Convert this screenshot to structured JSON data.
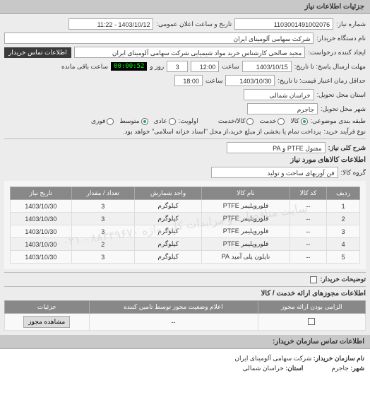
{
  "header": {
    "title": "جزئیات اطلاعات نیاز"
  },
  "fields": {
    "request_no_label": "شماره نیاز:",
    "request_no": "1103001491002076",
    "announce_label": "تاریخ و ساعت اعلان عمومی:",
    "announce_value": "1403/10/12 - 11:22",
    "buyer_label": "نام دستگاه خریدار:",
    "buyer_value": "شرکت سهامی آلومینای ایران",
    "creator_label": "ایجاد کننده درخواست:",
    "creator_value": "مجید صالحی کارشناس خرید مواد شیمیایی شرکت سهامی آلومینای ایران",
    "contact_btn": "اطلاعات تماس خریدار",
    "deadline_send_label": "مهلت ارسال پاسخ: تا تاریخ:",
    "deadline_send_date": "1403/10/15",
    "time_label": "ساعت",
    "deadline_send_time": "12:00",
    "days_remain_num": "3",
    "days_remain_label": "روز و",
    "countdown": "00:00:52",
    "remain_suffix": "ساعت باقی مانده",
    "deadline_valid_label": "حداقل زمان اعتبار قیمت: تا تاریخ:",
    "deadline_valid_date": "1403/10/30",
    "deadline_valid_time": "18:00",
    "province_label": "استان محل تحویل:",
    "province_value": "خراسان شمالی",
    "city_label": "شهر محل تحویل:",
    "city_value": "جاجرم",
    "subject_class_label": "طبقه بندی موضوعی:",
    "r1": "کالا",
    "r2": "خدمت",
    "r3": "کالا/خدمت",
    "priority_label": "اولویت:",
    "p1": "عادی",
    "p2": "متوسط",
    "p3": "فوری",
    "process_label": "نوع فرآیند خرید:",
    "process_value": "پرداخت تمام یا بخشی از مبلغ خرید،از محل \"اسناد خزانه اسلامی\" خواهد بود.",
    "desc_title_label": "شرح کلی نیاز:",
    "desc_title_value": "مفتول PTFE و PA"
  },
  "items_section": {
    "title": "اطلاعات کالاهای مورد نیاز",
    "group_label": "گروه کالا:",
    "group_value": "فن آوریهای ساخت و تولید"
  },
  "table": {
    "headers": [
      "ردیف",
      "کد کالا",
      "نام کالا",
      "واحد شمارش",
      "تعداد / مقدار",
      "تاریخ نیاز"
    ],
    "rows": [
      [
        "1",
        "--",
        "فلوروپلیمر PTFE",
        "کیلوگرم",
        "3",
        "1403/10/30"
      ],
      [
        "2",
        "--",
        "فلوروپلیمر PTFE",
        "کیلوگرم",
        "3",
        "1403/10/30"
      ],
      [
        "3",
        "--",
        "فلوروپلیمر PTFE",
        "کیلوگرم",
        "3",
        "1403/10/30"
      ],
      [
        "4",
        "--",
        "فلوروپلیمر PTFE",
        "کیلوگرم",
        "2",
        "1403/10/30"
      ],
      [
        "5",
        "--",
        "نایلون پلی آمید PA",
        "کیلوگرم",
        "3",
        "1403/10/30"
      ]
    ]
  },
  "watermark_text": "سایت مناقصات و مزایدات کلید واژه ۸۸۳۴۹۶۷۰ - ۰۲۱",
  "buyer_desc": {
    "label": "توضیحات خریدار:"
  },
  "license_section": {
    "title": "اطلاعات مجوزهای ارائه خدمت / کالا"
  },
  "license_table": {
    "headers": [
      "الزامی بودن ارائه مجوز",
      "اعلام وضعیت مجوز توسط تامین کننده",
      "جزئیات"
    ],
    "mandatory_checked": false,
    "status_value": "--",
    "view_btn": "مشاهده مجوز"
  },
  "footer": {
    "title": "اطلاعات تماس سازمان خریدار:",
    "org_label": "نام سازمان خریدار:",
    "org_value": "شرکت سهامی آلومینای ایران",
    "city_label": "شهر:",
    "city_value": "جاجرم",
    "province_label": "استان:",
    "province_value": "خراسان شمالی"
  }
}
